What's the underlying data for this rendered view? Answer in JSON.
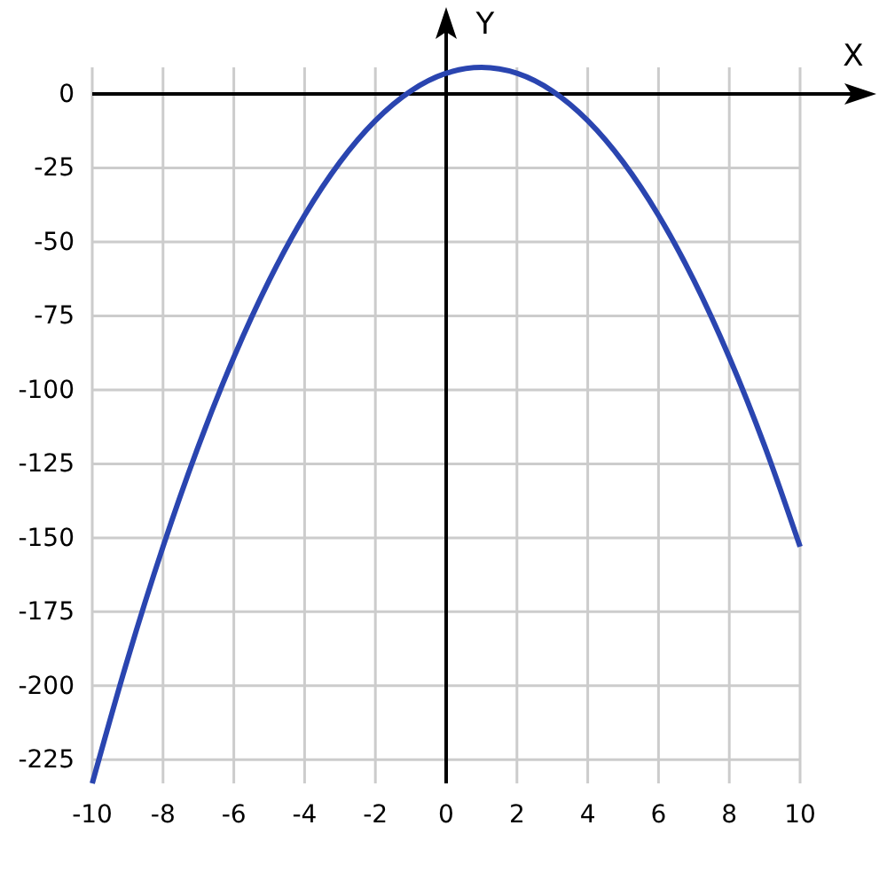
{
  "chart_data": {
    "type": "line",
    "xlabel": "X",
    "ylabel": "Y",
    "x": [
      -10,
      -9,
      -8,
      -7,
      -6,
      -5,
      -4,
      -3,
      -2,
      -1,
      0,
      1,
      2,
      3,
      4,
      5,
      6,
      7,
      8,
      9,
      10
    ],
    "series": [
      {
        "color": "#2a45b0",
        "values": [
          -233,
          -191,
          -153,
          -119,
          -89,
          -63,
          -41,
          -23,
          -9,
          1,
          7,
          9,
          7,
          1,
          -9,
          -23,
          -41,
          -63,
          -89,
          -119,
          -153
        ]
      }
    ],
    "xlim": [
      -10,
      10
    ],
    "ylim": [
      -233,
      9
    ],
    "xticks": [
      -10,
      -8,
      -6,
      -4,
      -2,
      0,
      2,
      4,
      6,
      8,
      10
    ],
    "yticks": [
      0,
      -25,
      -50,
      -75,
      -100,
      -125,
      -150,
      -175,
      -200,
      -225
    ],
    "grid": true,
    "marker": "none",
    "line_style": "solid"
  }
}
